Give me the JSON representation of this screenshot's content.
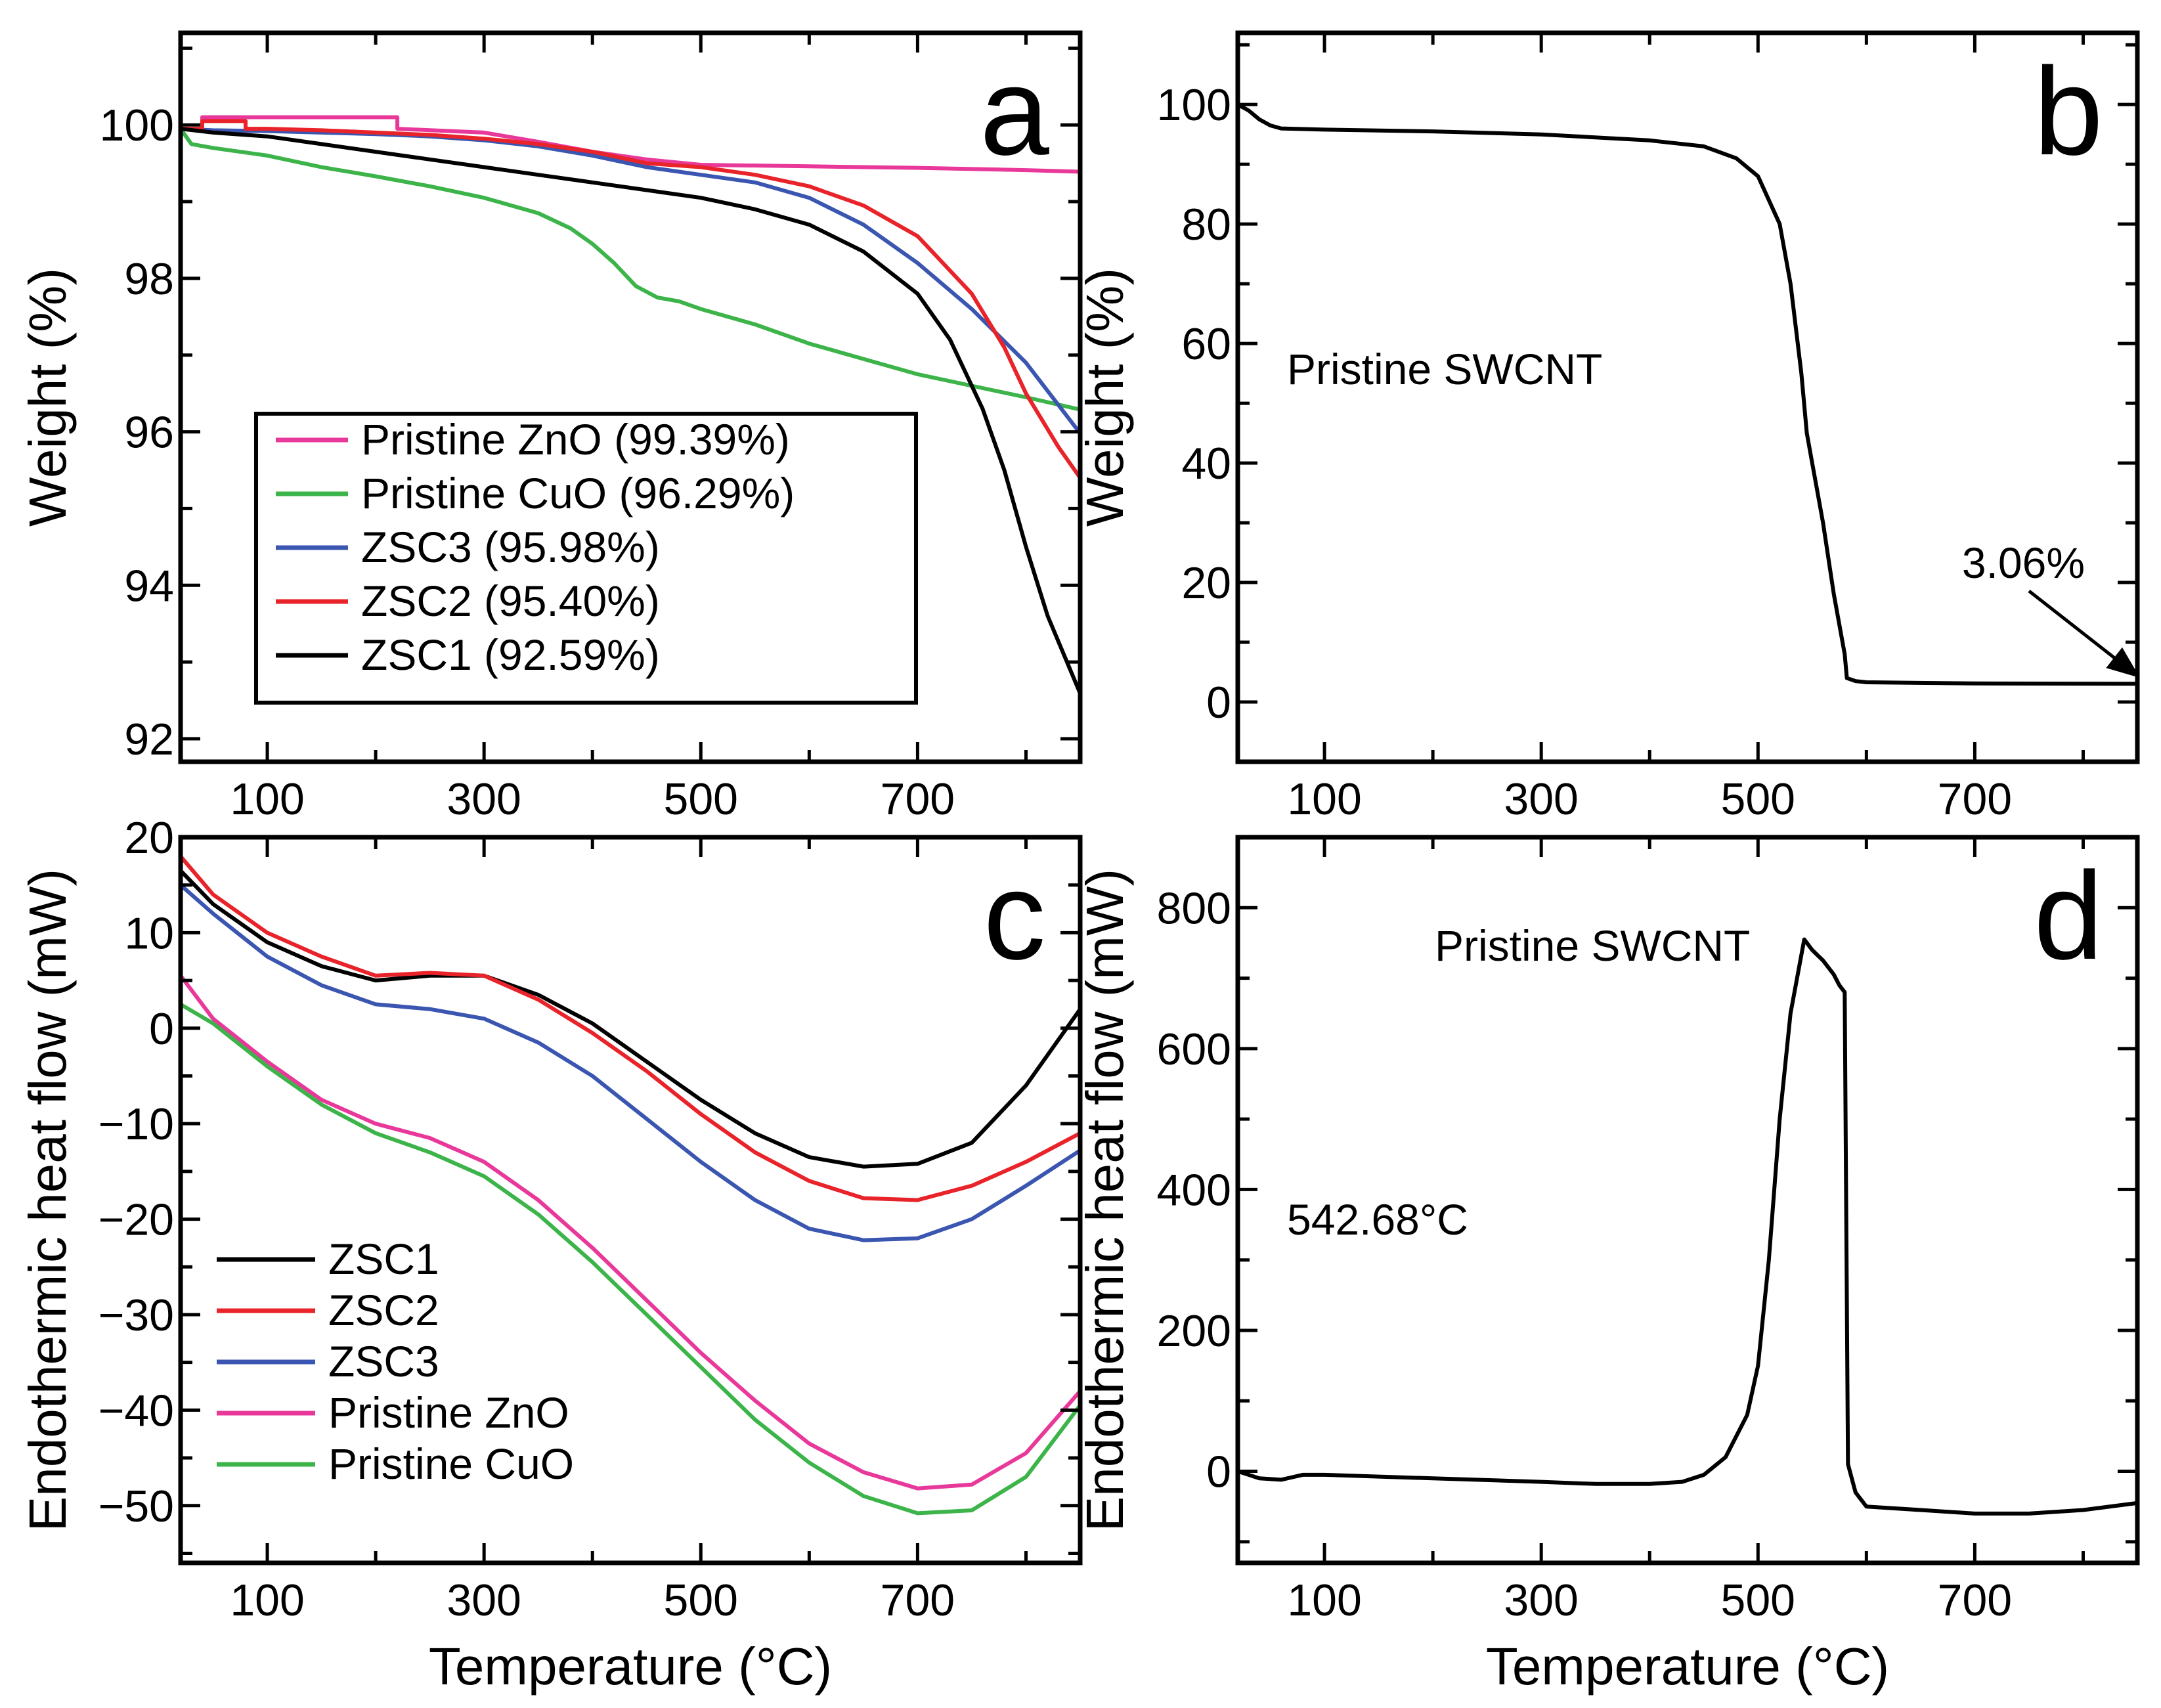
{
  "figure": {
    "xlabel_common": "Temperature (°C)"
  },
  "chart_data": [
    {
      "id": "a",
      "type": "line",
      "panel_label": "a",
      "xlabel": "",
      "ylabel": "Weight (%)",
      "xlim": [
        20,
        850
      ],
      "ylim": [
        91.7,
        101.2
      ],
      "xticks": [
        100,
        300,
        500,
        700
      ],
      "yticks": [
        92,
        94,
        96,
        98,
        100
      ],
      "legend_position": "lower-left-inset",
      "series": [
        {
          "name": "Pristine ZnO (99.39%)",
          "color": "#e8399b",
          "x": [
            20,
            30,
            40,
            40,
            220,
            220,
            300,
            350,
            400,
            450,
            500,
            600,
            700,
            800,
            850
          ],
          "y": [
            99.95,
            99.95,
            99.95,
            100.1,
            100.1,
            99.95,
            99.9,
            99.78,
            99.65,
            99.55,
            99.48,
            99.46,
            99.44,
            99.41,
            99.39
          ]
        },
        {
          "name": "Pristine CuO (96.29%)",
          "color": "#3cb44a",
          "x": [
            20,
            30,
            50,
            100,
            150,
            200,
            250,
            300,
            350,
            380,
            400,
            420,
            440,
            460,
            480,
            500,
            550,
            600,
            650,
            700,
            750,
            800,
            850
          ],
          "y": [
            99.95,
            99.75,
            99.7,
            99.6,
            99.45,
            99.33,
            99.2,
            99.05,
            98.85,
            98.65,
            98.45,
            98.2,
            97.9,
            97.75,
            97.7,
            97.6,
            97.4,
            97.15,
            96.95,
            96.75,
            96.6,
            96.45,
            96.29
          ]
        },
        {
          "name": "ZSC3 (95.98%)",
          "color": "#3a56b0",
          "x": [
            20,
            50,
            100,
            150,
            200,
            250,
            300,
            350,
            400,
            450,
            500,
            550,
            600,
            650,
            700,
            750,
            800,
            850
          ],
          "y": [
            99.95,
            99.93,
            99.92,
            99.9,
            99.88,
            99.85,
            99.8,
            99.72,
            99.6,
            99.45,
            99.35,
            99.25,
            99.05,
            98.7,
            98.2,
            97.6,
            96.9,
            95.98
          ]
        },
        {
          "name": "ZSC2 (95.40%)",
          "color": "#e8232a",
          "x": [
            20,
            40,
            40,
            80,
            80,
            100,
            150,
            200,
            250,
            300,
            350,
            400,
            450,
            500,
            550,
            600,
            650,
            700,
            750,
            780,
            800,
            830,
            850
          ],
          "y": [
            99.95,
            99.95,
            100.05,
            100.05,
            99.95,
            99.95,
            99.93,
            99.9,
            99.87,
            99.82,
            99.75,
            99.65,
            99.5,
            99.45,
            99.35,
            99.2,
            98.95,
            98.55,
            97.8,
            97.1,
            96.5,
            95.8,
            95.4
          ]
        },
        {
          "name": "ZSC1 (92.59%)",
          "color": "#000000",
          "x": [
            20,
            50,
            100,
            150,
            200,
            250,
            300,
            350,
            400,
            450,
            500,
            550,
            600,
            650,
            700,
            730,
            760,
            780,
            800,
            820,
            850
          ],
          "y": [
            99.95,
            99.9,
            99.85,
            99.75,
            99.65,
            99.55,
            99.45,
            99.35,
            99.25,
            99.15,
            99.05,
            98.9,
            98.7,
            98.35,
            97.8,
            97.2,
            96.3,
            95.5,
            94.5,
            93.6,
            92.59
          ]
        }
      ]
    },
    {
      "id": "b",
      "type": "line",
      "panel_label": "b",
      "xlabel": "",
      "ylabel": "Weight (%)",
      "xlim": [
        20,
        850
      ],
      "ylim": [
        -10,
        112
      ],
      "xticks": [
        100,
        300,
        500,
        700
      ],
      "yticks": [
        0,
        20,
        40,
        60,
        80,
        100
      ],
      "annotations": [
        {
          "text": "Pristine SWCNT"
        },
        {
          "text": "3.06%",
          "points_to": [
            850,
            3.06
          ]
        }
      ],
      "series": [
        {
          "name": "Pristine SWCNT",
          "color": "#000000",
          "x": [
            20,
            30,
            40,
            50,
            60,
            100,
            200,
            300,
            400,
            450,
            480,
            500,
            520,
            530,
            540,
            545,
            550,
            560,
            570,
            580,
            582,
            590,
            600,
            700,
            850
          ],
          "y": [
            100,
            99,
            97.5,
            96.5,
            96,
            95.8,
            95.5,
            95,
            94,
            93,
            91,
            88,
            80,
            70,
            55,
            45,
            40,
            30,
            18,
            8,
            4,
            3.5,
            3.3,
            3.1,
            3.06
          ]
        }
      ]
    },
    {
      "id": "c",
      "type": "line",
      "panel_label": "c",
      "xlabel": "Temperature (°C)",
      "ylabel": "Endothermic heat flow (mW)",
      "xlim": [
        20,
        850
      ],
      "ylim": [
        -56,
        20
      ],
      "xticks": [
        100,
        300,
        500,
        700
      ],
      "yticks": [
        -50,
        -40,
        -30,
        -20,
        -10,
        0,
        10,
        20
      ],
      "legend_position": "lower-left-inset",
      "series": [
        {
          "name": "ZSC1",
          "color": "#000000",
          "x": [
            20,
            50,
            100,
            150,
            200,
            250,
            300,
            350,
            400,
            450,
            500,
            550,
            600,
            650,
            700,
            750,
            800,
            850
          ],
          "y": [
            16.5,
            13,
            9,
            6.5,
            5,
            5.5,
            5.5,
            3.5,
            0.5,
            -3.5,
            -7.5,
            -11,
            -13.5,
            -14.5,
            -14.2,
            -12,
            -6,
            2
          ]
        },
        {
          "name": "ZSC2",
          "color": "#e8232a",
          "x": [
            20,
            50,
            100,
            150,
            200,
            250,
            300,
            350,
            400,
            450,
            500,
            550,
            600,
            650,
            700,
            750,
            800,
            850
          ],
          "y": [
            18,
            14,
            10,
            7.5,
            5.5,
            5.8,
            5.5,
            3,
            -0.5,
            -4.5,
            -9,
            -13,
            -16,
            -17.8,
            -18,
            -16.5,
            -14,
            -11
          ]
        },
        {
          "name": "ZSC3",
          "color": "#3a56b0",
          "x": [
            20,
            50,
            100,
            150,
            200,
            250,
            300,
            350,
            400,
            450,
            500,
            550,
            600,
            650,
            700,
            750,
            800,
            850
          ],
          "y": [
            15,
            12,
            7.5,
            4.5,
            2.5,
            2,
            1,
            -1.5,
            -5,
            -9.5,
            -14,
            -18,
            -21,
            -22.2,
            -22,
            -20,
            -16.5,
            -12.8
          ]
        },
        {
          "name": "Pristine ZnO",
          "color": "#e8399b",
          "x": [
            20,
            50,
            100,
            150,
            200,
            250,
            300,
            350,
            400,
            450,
            500,
            550,
            600,
            650,
            700,
            750,
            800,
            850
          ],
          "y": [
            5.5,
            1,
            -3.5,
            -7.5,
            -10,
            -11.5,
            -14,
            -18,
            -23,
            -28.5,
            -34,
            -39,
            -43.5,
            -46.5,
            -48.2,
            -47.8,
            -44.5,
            -38
          ]
        },
        {
          "name": "Pristine CuO",
          "color": "#3cb44a",
          "x": [
            20,
            50,
            100,
            150,
            200,
            250,
            300,
            350,
            400,
            450,
            500,
            550,
            600,
            650,
            700,
            750,
            800,
            850
          ],
          "y": [
            2.5,
            0.5,
            -4,
            -8,
            -11,
            -13,
            -15.5,
            -19.5,
            -24.5,
            -30,
            -35.5,
            -41,
            -45.5,
            -49,
            -50.8,
            -50.5,
            -47,
            -39.5
          ]
        }
      ]
    },
    {
      "id": "d",
      "type": "line",
      "panel_label": "d",
      "xlabel": "Temperature (°C)",
      "ylabel": "Endothermic heat flow (mW)",
      "xlim": [
        20,
        850
      ],
      "ylim": [
        -130,
        900
      ],
      "xticks": [
        100,
        300,
        500,
        700
      ],
      "yticks": [
        0,
        200,
        400,
        600,
        800
      ],
      "annotations": [
        {
          "text": "Pristine SWCNT"
        },
        {
          "text": "542.68°C",
          "points_to": [
            542.68,
            755
          ]
        }
      ],
      "series": [
        {
          "name": "Pristine SWCNT",
          "color": "#000000",
          "x": [
            20,
            40,
            60,
            80,
            100,
            200,
            300,
            350,
            400,
            430,
            450,
            470,
            490,
            500,
            510,
            520,
            530,
            542.68,
            550,
            560,
            570,
            575,
            580,
            583,
            590,
            600,
            650,
            700,
            750,
            800,
            850
          ],
          "y": [
            0,
            -10,
            -12,
            -5,
            -5,
            -10,
            -15,
            -18,
            -18,
            -15,
            -5,
            20,
            80,
            150,
            300,
            500,
            650,
            755,
            740,
            725,
            705,
            690,
            680,
            10,
            -30,
            -50,
            -55,
            -60,
            -60,
            -55,
            -45
          ]
        }
      ]
    }
  ]
}
